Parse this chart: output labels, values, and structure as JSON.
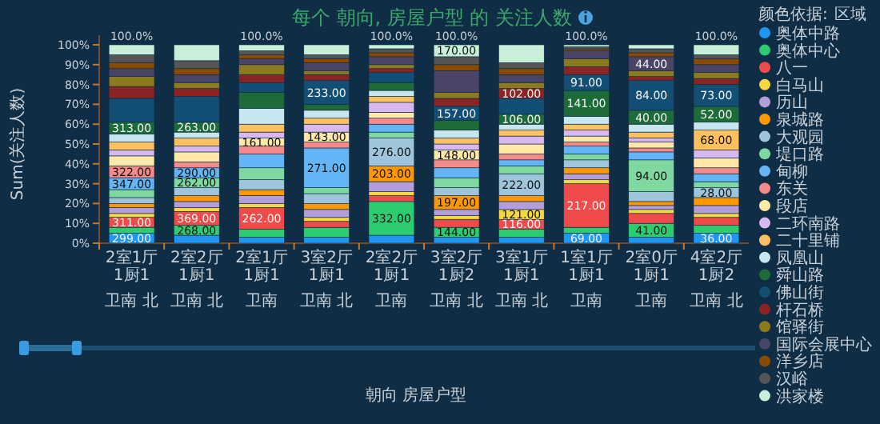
{
  "chart_data": {
    "type": "bar",
    "stacked": true,
    "title": "每个 朝向, 房屋户型 的 关注人数",
    "xlabel": "朝向 房屋户型",
    "ylabel": "Sum(关注人数)",
    "legend": "right",
    "legend_title": "区域",
    "annotations": [
      "颜色依据:",
      {
        "text": "299.00",
        "x": "2室1厅1厨1卫南 北",
        "y": 5
      },
      {
        "text": "311.00",
        "x": "2室1厅1厨1卫南 北",
        "y": 13
      },
      {
        "text": "347.00",
        "x": "2室1厅1厨1卫南 北",
        "y": 33
      },
      {
        "text": "322.00",
        "x": "2室1厅1厨1卫南 北",
        "y": 39
      },
      {
        "text": "313.00",
        "x": "2室1厅1厨1卫南 北",
        "y": 61
      },
      {
        "text": "268.00",
        "x": "2室2厅1厨1卫南 北",
        "y": 9
      },
      {
        "text": "369.00",
        "x": "2室2厅1厨1卫南 北",
        "y": 16
      },
      {
        "text": "262.00",
        "x": "2室2厅1厨1卫南 北",
        "y": 33
      },
      {
        "text": "290.00",
        "x": "2室2厅1厨1卫南 北",
        "y": 38
      },
      {
        "text": "263.00",
        "x": "2室2厅1厨1卫南 北",
        "y": 61
      },
      {
        "text": "262.00",
        "x": "2室1厅1厨1卫南",
        "y": 18
      },
      {
        "text": "161.00",
        "x": "2室1厅1厨1卫南",
        "y": 53
      },
      {
        "text": "271.00",
        "x": "3室2厅1厨1卫南 北",
        "y": 48
      },
      {
        "text": "143.00",
        "x": "3室2厅1厨1卫南 北",
        "y": 56
      },
      {
        "text": "233.00",
        "x": "3室2厅1厨1卫南 北",
        "y": 82
      },
      {
        "text": "332.00",
        "x": "2室2厅1厨1卫南",
        "y": 21
      },
      {
        "text": "203.00",
        "x": "2室2厅1厨1卫南",
        "y": 39
      },
      {
        "text": "276.00",
        "x": "2室2厅1厨1卫南",
        "y": 53
      },
      {
        "text": "144.00",
        "x": "3室2厅1厨2卫南 北",
        "y": 8
      },
      {
        "text": "197.00",
        "x": "3室2厅1厨2卫南 北",
        "y": 24
      },
      {
        "text": "148.00",
        "x": "3室2厅1厨2卫南 北",
        "y": 47
      },
      {
        "text": "157.00",
        "x": "3室2厅1厨2卫南 北",
        "y": 69
      },
      {
        "text": "170.00",
        "x": "3室2厅1厨2卫南 北",
        "y": 100
      },
      {
        "text": "116.00",
        "x": "3室1厅1厨1卫南 北",
        "y": 12
      },
      {
        "text": "121.00",
        "x": "3室1厅1厨1卫南 北",
        "y": 17
      },
      {
        "text": "222.00",
        "x": "3室1厅1厨1卫南 北",
        "y": 35
      },
      {
        "text": "106.00",
        "x": "3室1厅1厨1卫南 北",
        "y": 65
      },
      {
        "text": "102.00",
        "x": "3室1厅1厨1卫南 北",
        "y": 78
      },
      {
        "text": "69.00",
        "x": "1室1厅1厨1卫南",
        "y": 5
      },
      {
        "text": "217.00",
        "x": "1室1厅1厨1卫南",
        "y": 30
      },
      {
        "text": "141.00",
        "x": "1室1厅1厨1卫南",
        "y": 77
      },
      {
        "text": "91.00",
        "x": "1室1厅1厨1卫南",
        "y": 85
      },
      {
        "text": "41.00",
        "x": "2室0厅1厨1卫南",
        "y": 10
      },
      {
        "text": "94.00",
        "x": "2室0厅1厨1卫南",
        "y": 42
      },
      {
        "text": "40.00",
        "x": "2室0厅1厨1卫南",
        "y": 67
      },
      {
        "text": "84.00",
        "x": "2室0厅1厨1卫南",
        "y": 82
      },
      {
        "text": "44.00",
        "x": "2室0厅1厨1卫南",
        "y": 94
      },
      {
        "text": "36.00",
        "x": "4室2厅1厨2卫南 北",
        "y": 5
      },
      {
        "text": "28.00",
        "x": "4室2厅1厨2卫南 北",
        "y": 28
      },
      {
        "text": "68.00",
        "x": "4室2厅1厨2卫南 北",
        "y": 57
      },
      {
        "text": "52.00",
        "x": "4室2厅1厨2卫南 北",
        "y": 69
      },
      {
        "text": "73.00",
        "x": "4室2厅1厨2卫南 北",
        "y": 80
      }
    ],
    "categories": [
      "2室1厅1厨1卫南 北",
      "2室2厅1厨1卫南 北",
      "2室1厅1厨1卫南",
      "3室2厅1厨1卫南 北",
      "2室2厅1厨1卫南",
      "3室2厅1厨2卫南 北",
      "3室1厅1厨1卫南 北",
      "1室1厅1厨1卫南",
      "2室0厅1厨1卫南",
      "4室2厅1厨2卫南 北"
    ],
    "ylim": [
      0,
      100
    ],
    "yticks": [
      {
        "value": 0,
        "label": "0%"
      },
      {
        "value": 10,
        "label": "10%"
      },
      {
        "value": 20,
        "label": "20%"
      },
      {
        "value": 30,
        "label": "30%"
      },
      {
        "value": 40,
        "label": "40%"
      },
      {
        "value": 50,
        "label": "50%"
      },
      {
        "value": 60,
        "label": "60%"
      },
      {
        "value": 70,
        "label": "70%"
      },
      {
        "value": 80,
        "label": "80%"
      },
      {
        "value": 90,
        "label": "90%"
      },
      {
        "value": 100,
        "label": "100%"
      }
    ],
    "totals": [
      "100.0%",
      null,
      "100.0%",
      null,
      "100.0%",
      "100.0%",
      null,
      "100.0%",
      null,
      "100.0%"
    ],
    "series": [
      {
        "name": "奥体中路",
        "color": "#2196f3",
        "values": [
          5,
          4,
          3,
          3,
          4,
          3,
          3,
          5,
          3,
          5
        ]
      },
      {
        "name": "奥体中心",
        "color": "#2ecc71",
        "values": [
          3,
          5,
          4,
          5,
          17,
          5,
          4,
          3,
          7,
          4
        ]
      },
      {
        "name": "八一",
        "color": "#f04b4b",
        "values": [
          5,
          7,
          11,
          3,
          3,
          4,
          5,
          22,
          5,
          4
        ]
      },
      {
        "name": "白马山",
        "color": "#f5d742",
        "values": [
          2,
          2,
          2,
          2,
          2,
          2,
          5,
          2,
          2,
          2
        ]
      },
      {
        "name": "历山",
        "color": "#b39ddb",
        "values": [
          3,
          3,
          4,
          4,
          5,
          3,
          4,
          3,
          2,
          4
        ]
      },
      {
        "name": "泉城路",
        "color": "#ff9800",
        "values": [
          2,
          3,
          3,
          3,
          8,
          7,
          3,
          3,
          2,
          4
        ]
      },
      {
        "name": "大观园",
        "color": "#9fc5dc",
        "values": [
          3,
          4,
          5,
          5,
          14,
          4,
          11,
          4,
          5,
          5
        ]
      },
      {
        "name": "堤口路",
        "color": "#7fd8a0",
        "values": [
          4,
          5,
          6,
          3,
          3,
          5,
          4,
          3,
          16,
          3
        ]
      },
      {
        "name": "甸柳",
        "color": "#64b5f6",
        "values": [
          6,
          5,
          7,
          20,
          4,
          5,
          3,
          4,
          4,
          4
        ]
      },
      {
        "name": "东关",
        "color": "#f48a8a",
        "values": [
          6,
          3,
          4,
          3,
          3,
          4,
          3,
          2,
          2,
          3
        ]
      },
      {
        "name": "段店",
        "color": "#ffe9a8",
        "values": [
          5,
          5,
          4,
          5,
          3,
          5,
          5,
          3,
          3,
          5
        ]
      },
      {
        "name": "二环南路",
        "color": "#d7b8f0",
        "values": [
          3,
          3,
          3,
          4,
          5,
          3,
          4,
          3,
          2,
          4
        ]
      },
      {
        "name": "二十里铺",
        "color": "#ffc060",
        "values": [
          4,
          4,
          4,
          3,
          3,
          3,
          3,
          3,
          3,
          10
        ]
      },
      {
        "name": "凤凰山",
        "color": "#c8e6f0",
        "values": [
          4,
          3,
          8,
          4,
          3,
          4,
          3,
          4,
          4,
          4
        ]
      },
      {
        "name": "舜山路",
        "color": "#1e6b3a",
        "values": [
          6,
          5,
          8,
          3,
          4,
          5,
          5,
          13,
          7,
          8
        ]
      },
      {
        "name": "佛山街",
        "color": "#134f74",
        "values": [
          12,
          13,
          5,
          12,
          5,
          7,
          8,
          8,
          15,
          11
        ]
      },
      {
        "name": "杆石桥",
        "color": "#8b2525",
        "values": [
          6,
          4,
          4,
          3,
          2,
          4,
          5,
          4,
          2,
          3
        ]
      },
      {
        "name": "馆驿街",
        "color": "#8c7a1e",
        "values": [
          5,
          3,
          5,
          2,
          2,
          3,
          3,
          4,
          3,
          3
        ]
      },
      {
        "name": "国际会展中心",
        "color": "#4a4466",
        "values": [
          4,
          4,
          3,
          4,
          4,
          11,
          4,
          4,
          7,
          4
        ]
      },
      {
        "name": "洋乡店",
        "color": "#8a4a00",
        "values": [
          3,
          3,
          2,
          2,
          2,
          3,
          3,
          1,
          2,
          3
        ]
      },
      {
        "name": "汉峪",
        "color": "#555555",
        "values": [
          4,
          4,
          2,
          2,
          2,
          4,
          3,
          1,
          2,
          2
        ]
      },
      {
        "name": "洪家楼",
        "color": "#c8f0d8",
        "values": [
          5,
          8,
          3,
          5,
          2,
          6,
          9,
          1,
          2,
          5
        ]
      }
    ]
  }
}
